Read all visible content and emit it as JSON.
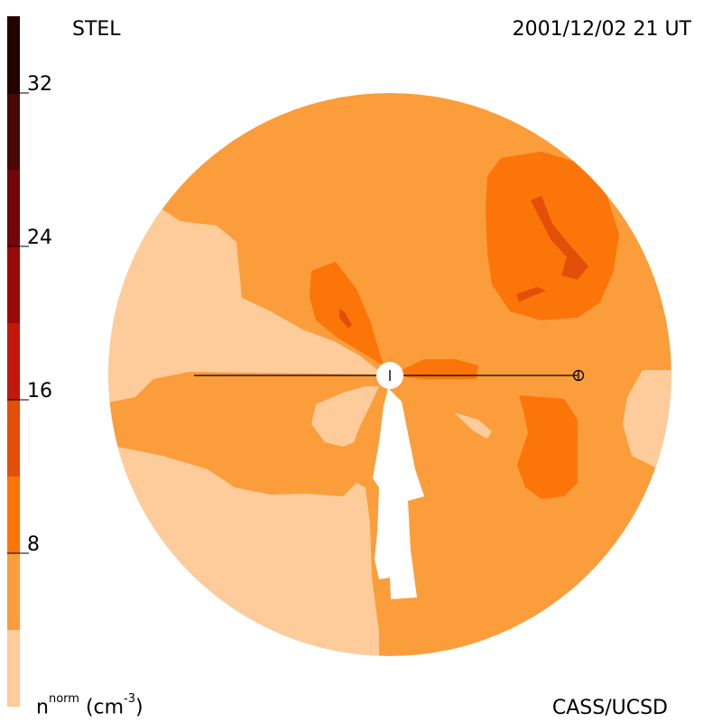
{
  "header": {
    "observatory": "STEL",
    "datetime": "2001/12/02 21 UT"
  },
  "footer": {
    "credit": "CASS/UCSD",
    "quantity": "n",
    "quantity_sup": "norm",
    "unit_open": "(cm",
    "unit_sup": "-3",
    "unit_close": ")"
  },
  "colorbar": {
    "ticks": [
      "8",
      "16",
      "24",
      "32"
    ],
    "tick_values": [
      8,
      16,
      24,
      32
    ],
    "range": [
      0,
      36
    ],
    "bands": [
      {
        "from": 0,
        "to": 4,
        "color": "#fdcc9a"
      },
      {
        "from": 4,
        "to": 8,
        "color": "#fb9d3a"
      },
      {
        "from": 8,
        "to": 12,
        "color": "#fc7509"
      },
      {
        "from": 12,
        "to": 16,
        "color": "#e34e08"
      },
      {
        "from": 16,
        "to": 20,
        "color": "#c2180b"
      },
      {
        "from": 20,
        "to": 24,
        "color": "#9b0808"
      },
      {
        "from": 24,
        "to": 28,
        "color": "#720608"
      },
      {
        "from": 28,
        "to": 32,
        "color": "#480604"
      },
      {
        "from": 32,
        "to": 36,
        "color": "#220300"
      }
    ]
  },
  "colors": {
    "level_1": "#fdcc9a",
    "level_2": "#fb9d3a",
    "level_3": "#fc7509",
    "level_4": "#e34e08",
    "sun": "#ffffff",
    "earth_line": "#000000"
  },
  "icons": {
    "sun": "sun-marker-icon",
    "earth": "earth-marker-icon"
  }
}
